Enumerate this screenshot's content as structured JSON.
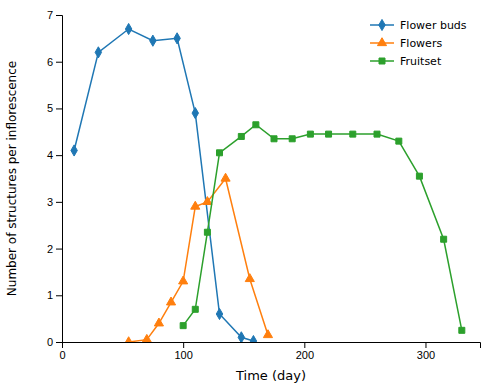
{
  "chart_data": {
    "type": "line",
    "xlabel": "Time (day)",
    "ylabel": "Number of structures per inflorescence",
    "series": [
      {
        "name": "Flower buds",
        "marker": "diamond",
        "x": [
          10,
          30,
          55,
          75,
          95,
          110,
          130,
          148,
          158
        ],
        "values": [
          4.1,
          6.2,
          6.7,
          6.45,
          6.5,
          4.9,
          0.6,
          0.1,
          0.02
        ]
      },
      {
        "name": "Flowers",
        "marker": "triangle",
        "x": [
          55,
          70,
          80,
          90,
          100,
          110,
          120,
          135,
          155,
          170
        ],
        "values": [
          0.0,
          0.05,
          0.4,
          0.85,
          1.3,
          2.9,
          3.0,
          3.5,
          1.35,
          0.15
        ]
      },
      {
        "name": "Fruitset",
        "marker": "square",
        "x": [
          100,
          110,
          120,
          130,
          148,
          160,
          175,
          190,
          205,
          220,
          240,
          260,
          278,
          295,
          315,
          330
        ],
        "values": [
          0.35,
          0.7,
          2.35,
          4.05,
          4.4,
          4.65,
          4.35,
          4.35,
          4.45,
          4.45,
          4.45,
          4.45,
          4.3,
          3.55,
          2.2,
          0.25
        ]
      }
    ],
    "xlim": [
      0,
      345
    ],
    "xticks": [
      0,
      100,
      200,
      300
    ],
    "ylim": [
      0,
      7
    ],
    "yticks": [
      0,
      1,
      2,
      3,
      4,
      5,
      6,
      7
    ],
    "legend": "upper right",
    "grid": false
  }
}
